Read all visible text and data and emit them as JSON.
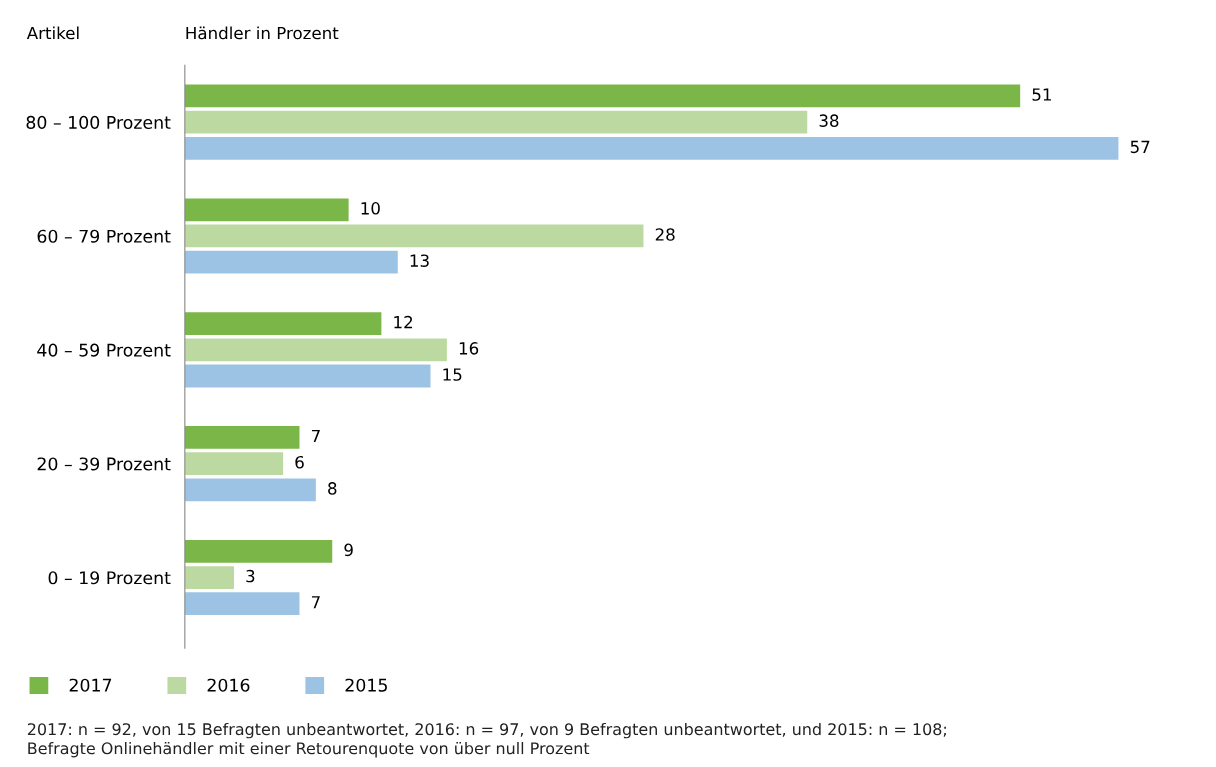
{
  "chart_data": {
    "type": "bar",
    "orientation": "horizontal",
    "xlabel": "Händler in Prozent",
    "ylabel": "Artikel",
    "categories": [
      "80 – 100 Prozent",
      "60 – 79 Prozent",
      "40 – 59 Prozent",
      "20 – 39 Prozent",
      "0 – 19 Prozent"
    ],
    "series": [
      {
        "name": "2017",
        "color": "#7ab648",
        "values": [
          51,
          10,
          12,
          7,
          9
        ]
      },
      {
        "name": "2016",
        "color": "#bcd9a2",
        "values": [
          38,
          28,
          16,
          6,
          3
        ]
      },
      {
        "name": "2015",
        "color": "#9cc3e3",
        "values": [
          57,
          13,
          15,
          8,
          7
        ]
      }
    ],
    "data_labels": true,
    "legend": "bottom",
    "grid": false,
    "tick_labels": "y",
    "annotations": [
      "2017: n = 92, von 15 Befragten unbeantwortet, 2016: n = 97, von 9 Befragten unbeantwortet, und 2015: n = 108;\nBefragte Onlinehändler mit einer Retourenquote von über null Prozent"
    ]
  }
}
